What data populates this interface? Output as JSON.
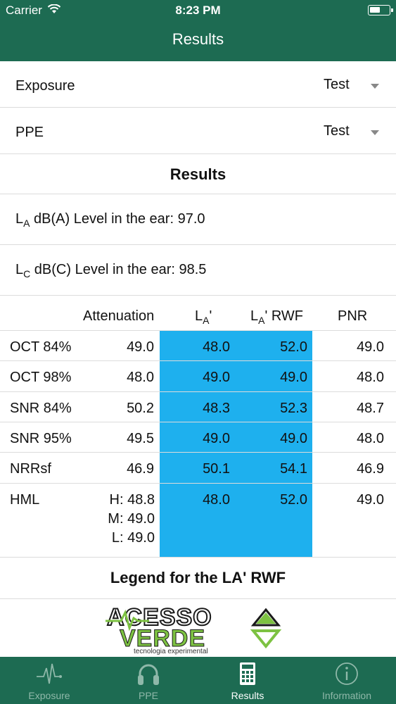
{
  "status": {
    "carrier": "Carrier",
    "time": "8:23 PM"
  },
  "nav": {
    "title": "Results"
  },
  "exposure": {
    "label": "Exposure",
    "value": "Test"
  },
  "ppe": {
    "label": "PPE",
    "value": "Test"
  },
  "results_title": "Results",
  "level_a": {
    "prefix": "L",
    "sub": "A",
    "text": " dB(A) Level in the ear: 97.0"
  },
  "level_c": {
    "prefix": "L",
    "sub": "C",
    "text": " dB(C) Level in the ear: 98.5"
  },
  "table": {
    "headers": {
      "attenuation": "Attenuation",
      "la_prefix": "L",
      "la_sub": "A",
      "la_suffix": "'",
      "rwf_prefix": "L",
      "rwf_sub": "A",
      "rwf_suffix": "' RWF",
      "pnr": "PNR"
    },
    "rows": [
      {
        "name": "OCT 84%",
        "attenuation": "49.0",
        "la": "48.0",
        "rwf": "52.0",
        "pnr": "49.0"
      },
      {
        "name": "OCT 98%",
        "attenuation": "48.0",
        "la": "49.0",
        "rwf": "49.0",
        "pnr": "48.0"
      },
      {
        "name": "SNR 84%",
        "attenuation": "50.2",
        "la": "48.3",
        "rwf": "52.3",
        "pnr": "48.7"
      },
      {
        "name": "SNR 95%",
        "attenuation": "49.5",
        "la": "49.0",
        "rwf": "49.0",
        "pnr": "48.0"
      },
      {
        "name": "NRRsf",
        "attenuation": "46.9",
        "la": "50.1",
        "rwf": "54.1",
        "pnr": "46.9"
      },
      {
        "name": "HML",
        "att_h": "H: 48.8",
        "att_m": "M: 49.0",
        "att_l": "L: 49.0",
        "la": "48.0",
        "rwf": "52.0",
        "pnr": "49.0"
      }
    ]
  },
  "legend": "Legend for the LA' RWF",
  "logo": {
    "line1": "ACESSO",
    "line2": "VERDE",
    "tagline": "tecnologia experimental"
  },
  "colors": {
    "brand": "#1d6b52",
    "highlight": "#1eb0ee",
    "logo_green": "#7dc242"
  },
  "tabs": [
    {
      "label": "Exposure",
      "icon": "waveform-icon"
    },
    {
      "label": "PPE",
      "icon": "headphones-icon"
    },
    {
      "label": "Results",
      "icon": "calculator-icon"
    },
    {
      "label": "Information",
      "icon": "info-icon"
    }
  ]
}
